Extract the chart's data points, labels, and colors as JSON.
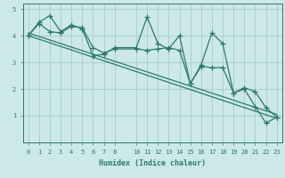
{
  "title": "",
  "xlabel": "Humidex (Indice chaleur)",
  "ylabel": "",
  "bg_color": "#cce8e8",
  "grid_color": "#aacccc",
  "line_color": "#2d7a6a",
  "xlim": [
    -0.5,
    23.5
  ],
  "ylim": [
    0,
    5.2
  ],
  "xticks": [
    0,
    1,
    2,
    3,
    4,
    5,
    6,
    7,
    8,
    10,
    11,
    12,
    13,
    14,
    15,
    16,
    17,
    18,
    19,
    20,
    21,
    22,
    23
  ],
  "yticks": [
    1,
    2,
    3,
    4,
    5
  ],
  "line1_x": [
    0,
    1,
    2,
    3,
    4,
    5,
    6,
    7,
    8,
    10,
    11,
    12,
    13,
    14,
    15,
    16,
    17,
    18,
    19,
    20,
    21,
    22,
    23
  ],
  "line1_y": [
    4.0,
    4.5,
    4.75,
    4.15,
    4.4,
    4.25,
    3.25,
    3.3,
    3.55,
    3.55,
    4.7,
    3.7,
    3.5,
    4.0,
    2.2,
    2.9,
    4.1,
    3.7,
    1.85,
    2.05,
    1.9,
    1.3,
    0.95
  ],
  "line2_x": [
    0,
    1,
    2,
    3,
    4,
    5,
    6,
    7,
    8,
    10,
    11,
    12,
    13,
    14,
    15,
    16,
    17,
    18,
    19,
    20,
    21,
    22,
    23
  ],
  "line2_y": [
    4.0,
    4.45,
    4.15,
    4.1,
    4.35,
    4.3,
    3.55,
    3.35,
    3.5,
    3.5,
    3.45,
    3.5,
    3.55,
    3.45,
    2.2,
    2.85,
    2.8,
    2.8,
    1.85,
    2.0,
    1.35,
    0.72,
    0.95
  ],
  "line3_x": [
    0,
    23
  ],
  "line3_y": [
    4.1,
    1.05
  ],
  "line4_x": [
    0,
    23
  ],
  "line4_y": [
    4.0,
    0.9
  ]
}
